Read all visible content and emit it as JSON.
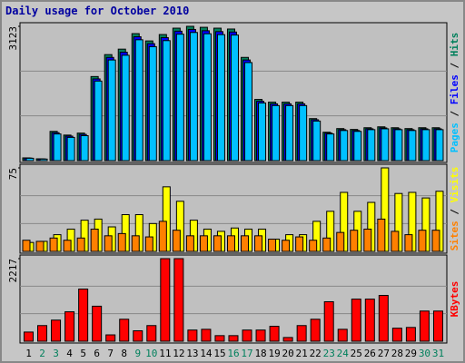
{
  "chart_data": [
    {
      "type": "bar",
      "title": "Daily usage for October 2010",
      "ylim": [
        0,
        3123
      ],
      "yticks": [
        3123
      ],
      "legend_separator": " / ",
      "series": [
        {
          "name": "Hits",
          "color": "#00805c",
          "values": [
            64,
            42,
            680,
            594,
            640,
            1955,
            2465,
            2592,
            2953,
            2783,
            2932,
            3080,
            3123,
            3100,
            3080,
            3060,
            2400,
            1423,
            1360,
            1360,
            1360,
            977,
            660,
            745,
            725,
            765,
            786,
            765,
            745,
            765,
            765
          ]
        },
        {
          "name": "Files",
          "color": "#0000ff",
          "values": [
            60,
            40,
            650,
            570,
            610,
            1900,
            2400,
            2520,
            2880,
            2720,
            2860,
            3010,
            3050,
            3020,
            3000,
            2990,
            2340,
            1380,
            1320,
            1320,
            1320,
            950,
            640,
            720,
            700,
            740,
            760,
            740,
            720,
            740,
            740
          ]
        },
        {
          "name": "Pages",
          "color": "#00c0ff",
          "values": [
            55,
            36,
            620,
            540,
            580,
            1850,
            2340,
            2450,
            2810,
            2650,
            2790,
            2940,
            2980,
            2950,
            2930,
            2920,
            2280,
            1340,
            1280,
            1280,
            1280,
            920,
            620,
            700,
            680,
            720,
            740,
            720,
            700,
            720,
            720
          ]
        }
      ]
    },
    {
      "type": "bar",
      "ylim": [
        0,
        75
      ],
      "yticks": [
        75
      ],
      "legend_separator": " / ",
      "series": [
        {
          "name": "Visits",
          "color": "#ffff00",
          "values": [
            8,
            9,
            15,
            20,
            28,
            29,
            22,
            33,
            33,
            25,
            58,
            45,
            28,
            20,
            18,
            21,
            20,
            20,
            11,
            15,
            15,
            27,
            36,
            53,
            36,
            44,
            75,
            52,
            53,
            48,
            54
          ]
        },
        {
          "name": "Sites",
          "color": "#ff8000",
          "values": [
            10,
            9,
            12,
            10,
            12,
            20,
            14,
            16,
            14,
            13,
            27,
            19,
            14,
            14,
            14,
            14,
            14,
            14,
            11,
            10,
            13,
            10,
            12,
            17,
            19,
            20,
            29,
            18,
            15,
            19,
            19
          ]
        }
      ]
    },
    {
      "type": "bar",
      "ylim": [
        0,
        2217
      ],
      "yticks": [
        2217
      ],
      "categories": [
        "1",
        "2",
        "3",
        "4",
        "5",
        "6",
        "7",
        "8",
        "9",
        "10",
        "11",
        "12",
        "13",
        "14",
        "15",
        "16",
        "17",
        "18",
        "19",
        "20",
        "21",
        "22",
        "23",
        "24",
        "25",
        "26",
        "27",
        "28",
        "29",
        "30",
        "31"
      ],
      "category_colors": [
        "#000000",
        "#00805c",
        "#00805c",
        "#000000",
        "#000000",
        "#000000",
        "#000000",
        "#000000",
        "#00805c",
        "#00805c",
        "#000000",
        "#000000",
        "#000000",
        "#000000",
        "#000000",
        "#00805c",
        "#00805c",
        "#000000",
        "#000000",
        "#000000",
        "#000000",
        "#000000",
        "#00805c",
        "#00805c",
        "#000000",
        "#000000",
        "#000000",
        "#000000",
        "#000000",
        "#00805c",
        "#00805c"
      ],
      "series": [
        {
          "name": "KBytes",
          "color": "#ff0000",
          "values": [
            246,
            420,
            567,
            790,
            1400,
            940,
            170,
            590,
            280,
            420,
            2217,
            2217,
            300,
            320,
            150,
            150,
            300,
            300,
            400,
            100,
            420,
            590,
            1060,
            320,
            1130,
            1130,
            1230,
            350,
            370,
            810,
            810
          ]
        }
      ]
    }
  ]
}
